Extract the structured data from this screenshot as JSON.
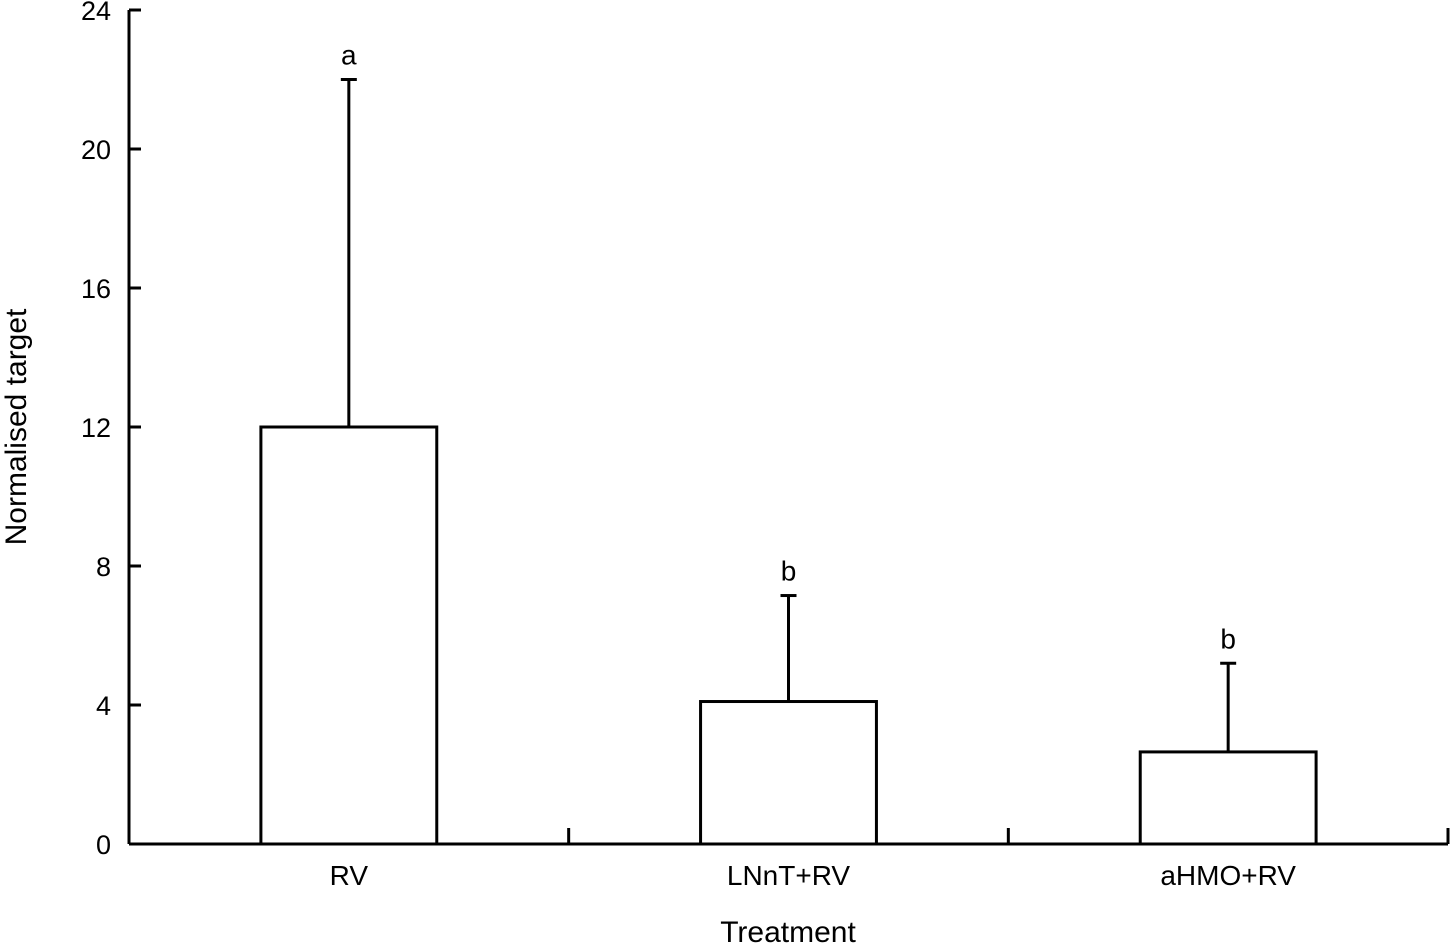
{
  "chart_data": {
    "type": "bar",
    "title": "",
    "xlabel": "Treatment",
    "ylabel": "Normalised target",
    "categories": [
      "RV",
      "LNnT+RV",
      "aHMO+RV"
    ],
    "values": [
      12.0,
      4.1,
      2.65
    ],
    "error_upper": [
      22.0,
      7.15,
      5.2
    ],
    "annotations": [
      "a",
      "b",
      "b"
    ],
    "ylim": [
      0,
      24
    ],
    "yticks": [
      0,
      4,
      8,
      12,
      16,
      20,
      24
    ],
    "grid": false,
    "legend": "none",
    "bar_fill": "#ffffff",
    "line_color": "#000000"
  }
}
